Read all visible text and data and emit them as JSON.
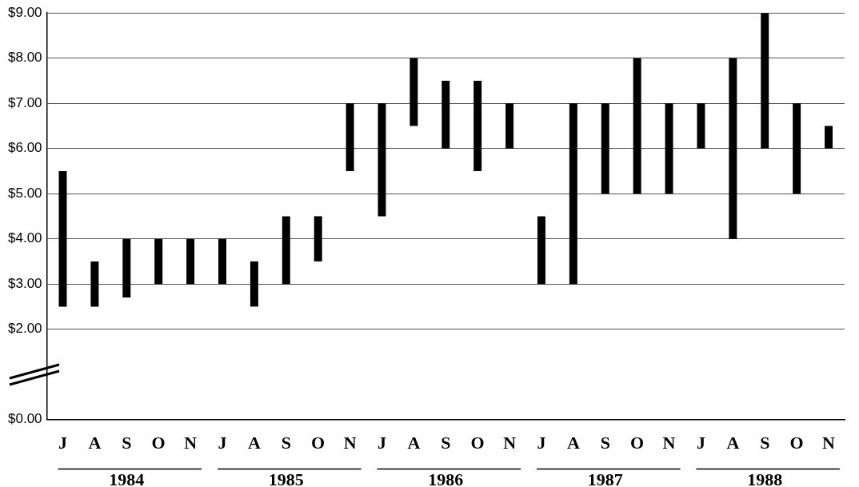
{
  "chart_data": {
    "type": "bar",
    "categories": [
      "J",
      "A",
      "S",
      "O",
      "N",
      "J",
      "A",
      "S",
      "O",
      "N",
      "J",
      "A",
      "S",
      "O",
      "N",
      "J",
      "A",
      "S",
      "O",
      "N",
      "J",
      "A",
      "S",
      "O",
      "N"
    ],
    "base": [
      2.5,
      2.5,
      2.7,
      3,
      3,
      3,
      2.5,
      3,
      3.5,
      5.5,
      4.5,
      6.5,
      6,
      5.5,
      6,
      3,
      3,
      5,
      5,
      5,
      6,
      4,
      6,
      5,
      6
    ],
    "values": [
      3,
      1,
      1.3,
      1,
      1,
      1,
      1,
      1.5,
      1,
      1.5,
      2.5,
      1.5,
      1.5,
      2,
      1,
      1.5,
      4,
      2,
      3,
      2,
      1,
      4,
      3,
      2,
      0.5
    ],
    "color": "#000000",
    "ylim": [
      0,
      9
    ],
    "yticks": [
      {
        "value": 0,
        "label": "$0.00"
      },
      {
        "value": 2,
        "label": "$2.00"
      },
      {
        "value": 3,
        "label": "$3.00"
      },
      {
        "value": 4,
        "label": "$4.00"
      },
      {
        "value": 5,
        "label": "$5.00"
      },
      {
        "value": 6,
        "label": "$6.00"
      },
      {
        "value": 7,
        "label": "$7.00"
      },
      {
        "value": 8,
        "label": "$8.00"
      },
      {
        "value": 9,
        "label": "$9.00"
      }
    ],
    "grid": "y",
    "legend": false,
    "annotations": [
      "1984",
      "1985",
      "1986",
      "1987",
      "1988"
    ]
  }
}
